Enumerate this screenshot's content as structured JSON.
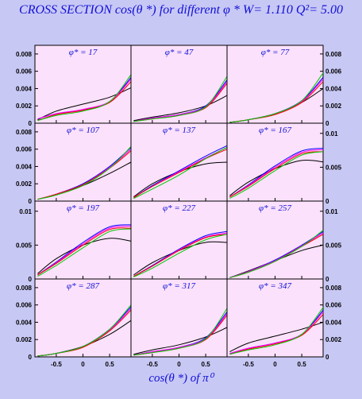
{
  "title": "CROSS SECTION  cos(θ *)   for different  φ *   W= 1.110  Q²= 5.00",
  "xlabel": "cos(θ *)  of  π⁰",
  "colors": {
    "background": "#c8c8f5",
    "panel": "#fbe1fb",
    "text": "#1010d8",
    "curves": [
      "#000000",
      "#0000ff",
      "#ff00ff",
      "#ff0000",
      "#00c800"
    ]
  },
  "chart_data": [
    {
      "type": "line",
      "row": 0,
      "col": 0,
      "label": "φ* = 17",
      "x": [
        -0.85,
        -0.5,
        0,
        0.5,
        0.9
      ],
      "ylim": [
        0,
        0.009
      ],
      "yticks": [
        {
          "v": 0,
          "t": "0"
        },
        {
          "v": 0.002,
          "t": "0.002"
        },
        {
          "v": 0.004,
          "t": "0.004"
        },
        {
          "v": 0.006,
          "t": "0.006"
        },
        {
          "v": 0.008,
          "t": "0.008"
        }
      ],
      "ytick_side": "left",
      "series": [
        {
          "color": "#000000",
          "values": [
            0.0004,
            0.0014,
            0.0022,
            0.003,
            0.0041
          ]
        },
        {
          "color": "#0000ff",
          "values": [
            0.0005,
            0.0011,
            0.0015,
            0.0025,
            0.0053
          ]
        },
        {
          "color": "#ff00ff",
          "values": [
            0.0005,
            0.0011,
            0.0016,
            0.0025,
            0.0051
          ]
        },
        {
          "color": "#ff0000",
          "values": [
            0.0003,
            0.001,
            0.0015,
            0.0024,
            0.0048
          ]
        },
        {
          "color": "#00c800",
          "values": [
            0.0003,
            0.0009,
            0.0014,
            0.0025,
            0.0056
          ]
        }
      ]
    },
    {
      "type": "line",
      "row": 0,
      "col": 1,
      "label": "φ* = 47",
      "x": [
        -0.85,
        -0.5,
        0,
        0.5,
        0.9
      ],
      "ylim": [
        0,
        0.009
      ],
      "yticks": [],
      "ytick_side": "none",
      "series": [
        {
          "color": "#000000",
          "values": [
            0.0003,
            0.0007,
            0.0012,
            0.002,
            0.0032
          ]
        },
        {
          "color": "#0000ff",
          "values": [
            0.0002,
            0.0006,
            0.001,
            0.002,
            0.005
          ]
        },
        {
          "color": "#ff00ff",
          "values": [
            0.0002,
            0.0006,
            0.001,
            0.0019,
            0.0048
          ]
        },
        {
          "color": "#ff0000",
          "values": [
            0.0002,
            0.0005,
            0.0009,
            0.0018,
            0.0046
          ]
        },
        {
          "color": "#00c800",
          "values": [
            0.0002,
            0.0005,
            0.0009,
            0.0019,
            0.0054
          ]
        }
      ]
    },
    {
      "type": "line",
      "row": 0,
      "col": 2,
      "label": "φ* = 77",
      "x": [
        -0.85,
        -0.5,
        0,
        0.5,
        0.9
      ],
      "ylim": [
        0,
        0.009
      ],
      "yticks": [
        {
          "v": 0,
          "t": "0"
        },
        {
          "v": 0.002,
          "t": "0.002"
        },
        {
          "v": 0.004,
          "t": "0.004"
        },
        {
          "v": 0.006,
          "t": "0.006"
        },
        {
          "v": 0.008,
          "t": "0.008"
        }
      ],
      "ytick_side": "right",
      "series": [
        {
          "color": "#000000",
          "values": [
            0.0001,
            0.0004,
            0.0011,
            0.0024,
            0.004
          ]
        },
        {
          "color": "#0000ff",
          "values": [
            0.0001,
            0.0004,
            0.0011,
            0.0026,
            0.0053
          ]
        },
        {
          "color": "#ff00ff",
          "values": [
            0.0001,
            0.0004,
            0.0011,
            0.0025,
            0.0051
          ]
        },
        {
          "color": "#ff0000",
          "values": [
            0.0001,
            0.0004,
            0.001,
            0.0024,
            0.0048
          ]
        },
        {
          "color": "#00c800",
          "values": [
            0.0001,
            0.0004,
            0.0011,
            0.0026,
            0.0058
          ]
        }
      ]
    },
    {
      "type": "line",
      "row": 1,
      "col": 0,
      "label": "φ* = 107",
      "x": [
        -0.85,
        -0.5,
        0,
        0.5,
        0.9
      ],
      "ylim": [
        0,
        0.009
      ],
      "yticks": [
        {
          "v": 0,
          "t": "0"
        },
        {
          "v": 0.002,
          "t": "0.002"
        },
        {
          "v": 0.004,
          "t": "0.004"
        },
        {
          "v": 0.006,
          "t": "0.006"
        },
        {
          "v": 0.008,
          "t": "0.008"
        }
      ],
      "ytick_side": "left",
      "series": [
        {
          "color": "#000000",
          "values": [
            0.0002,
            0.0008,
            0.0018,
            0.0032,
            0.0045
          ]
        },
        {
          "color": "#0000ff",
          "values": [
            0.0002,
            0.0008,
            0.002,
            0.004,
            0.0062
          ]
        },
        {
          "color": "#ff00ff",
          "values": [
            0.0002,
            0.0008,
            0.0019,
            0.0039,
            0.006
          ]
        },
        {
          "color": "#ff0000",
          "values": [
            0.0002,
            0.0008,
            0.0019,
            0.0038,
            0.0058
          ]
        },
        {
          "color": "#00c800",
          "values": [
            0.0002,
            0.0007,
            0.0018,
            0.0038,
            0.0063
          ]
        }
      ]
    },
    {
      "type": "line",
      "row": 1,
      "col": 1,
      "label": "φ* = 137",
      "x": [
        -0.85,
        -0.5,
        0,
        0.5,
        0.9
      ],
      "ylim": [
        0,
        0.009
      ],
      "yticks": [],
      "ytick_side": "none",
      "series": [
        {
          "color": "#000000",
          "values": [
            0.0005,
            0.002,
            0.0034,
            0.0043,
            0.0045
          ]
        },
        {
          "color": "#0000ff",
          "values": [
            0.0004,
            0.0018,
            0.0035,
            0.0052,
            0.0064
          ]
        },
        {
          "color": "#ff00ff",
          "values": [
            0.0004,
            0.0017,
            0.0034,
            0.005,
            0.0062
          ]
        },
        {
          "color": "#ff0000",
          "values": [
            0.0004,
            0.0017,
            0.0033,
            0.0049,
            0.006
          ]
        },
        {
          "color": "#00c800",
          "values": [
            0.0003,
            0.0014,
            0.003,
            0.0049,
            0.0062
          ]
        }
      ]
    },
    {
      "type": "line",
      "row": 1,
      "col": 2,
      "label": "φ* = 167",
      "x": [
        -0.85,
        -0.5,
        0,
        0.5,
        0.9
      ],
      "ylim": [
        0,
        0.0115
      ],
      "yticks": [
        {
          "v": 0,
          "t": "0"
        },
        {
          "v": 0.005,
          "t": "0.005"
        },
        {
          "v": 0.01,
          "t": "0.01"
        }
      ],
      "ytick_side": "right",
      "series": [
        {
          "color": "#000000",
          "values": [
            0.0008,
            0.0028,
            0.0048,
            0.006,
            0.0058
          ]
        },
        {
          "color": "#0000ff",
          "values": [
            0.0006,
            0.0024,
            0.0052,
            0.0074,
            0.0078
          ]
        },
        {
          "color": "#ff00ff",
          "values": [
            0.0006,
            0.0023,
            0.005,
            0.0072,
            0.0076
          ]
        },
        {
          "color": "#ff0000",
          "values": [
            0.0006,
            0.0022,
            0.0048,
            0.007,
            0.0073
          ]
        },
        {
          "color": "#00c800",
          "values": [
            0.0004,
            0.0019,
            0.0045,
            0.0068,
            0.0073
          ]
        }
      ]
    },
    {
      "type": "line",
      "row": 2,
      "col": 0,
      "label": "φ* = 197",
      "x": [
        -0.85,
        -0.5,
        0,
        0.5,
        0.9
      ],
      "ylim": [
        0,
        0.0115
      ],
      "yticks": [
        {
          "v": 0,
          "t": "0"
        },
        {
          "v": 0.005,
          "t": "0.005"
        },
        {
          "v": 0.01,
          "t": "0.01"
        }
      ],
      "ytick_side": "left",
      "series": [
        {
          "color": "#000000",
          "values": [
            0.0008,
            0.003,
            0.005,
            0.006,
            0.0056
          ]
        },
        {
          "color": "#0000ff",
          "values": [
            0.0006,
            0.0025,
            0.0054,
            0.0077,
            0.008
          ]
        },
        {
          "color": "#ff00ff",
          "values": [
            0.0006,
            0.0024,
            0.0052,
            0.0075,
            0.0078
          ]
        },
        {
          "color": "#ff0000",
          "values": [
            0.0006,
            0.0023,
            0.005,
            0.0073,
            0.0075
          ]
        },
        {
          "color": "#00c800",
          "values": [
            0.0004,
            0.002,
            0.0046,
            0.007,
            0.0074
          ]
        }
      ]
    },
    {
      "type": "line",
      "row": 2,
      "col": 1,
      "label": "φ* = 227",
      "x": [
        -0.85,
        -0.5,
        0,
        0.5,
        0.9
      ],
      "ylim": [
        0,
        0.0115
      ],
      "yticks": [],
      "ytick_side": "none",
      "series": [
        {
          "color": "#000000",
          "values": [
            0.0006,
            0.0024,
            0.0042,
            0.0054,
            0.0054
          ]
        },
        {
          "color": "#0000ff",
          "values": [
            0.0004,
            0.002,
            0.0044,
            0.0064,
            0.007
          ]
        },
        {
          "color": "#ff00ff",
          "values": [
            0.0004,
            0.0019,
            0.0043,
            0.0062,
            0.0068
          ]
        },
        {
          "color": "#ff0000",
          "values": [
            0.0004,
            0.0019,
            0.0042,
            0.0061,
            0.0066
          ]
        },
        {
          "color": "#00c800",
          "values": [
            0.0003,
            0.0016,
            0.0038,
            0.0058,
            0.0066
          ]
        }
      ]
    },
    {
      "type": "line",
      "row": 2,
      "col": 2,
      "label": "φ* = 257",
      "x": [
        -0.85,
        -0.5,
        0,
        0.5,
        0.9
      ],
      "ylim": [
        0,
        0.0115
      ],
      "yticks": [
        {
          "v": 0,
          "t": "0"
        },
        {
          "v": 0.005,
          "t": "0.005"
        },
        {
          "v": 0.01,
          "t": "0.01"
        }
      ],
      "ytick_side": "right",
      "series": [
        {
          "color": "#000000",
          "values": [
            0.0002,
            0.0012,
            0.0027,
            0.0042,
            0.005
          ]
        },
        {
          "color": "#0000ff",
          "values": [
            0.0002,
            0.0011,
            0.0028,
            0.005,
            0.007
          ]
        },
        {
          "color": "#ff00ff",
          "values": [
            0.0002,
            0.0011,
            0.0027,
            0.0049,
            0.0068
          ]
        },
        {
          "color": "#ff0000",
          "values": [
            0.0002,
            0.001,
            0.0026,
            0.0048,
            0.0066
          ]
        },
        {
          "color": "#00c800",
          "values": [
            0.0002,
            0.001,
            0.0026,
            0.0048,
            0.0072
          ]
        }
      ]
    },
    {
      "type": "line",
      "row": 3,
      "col": 0,
      "label": "φ* = 287",
      "x": [
        -0.85,
        -0.5,
        0,
        0.5,
        0.9
      ],
      "ylim": [
        0,
        0.009
      ],
      "yticks": [
        {
          "v": 0,
          "t": "0"
        },
        {
          "v": 0.002,
          "t": "0.002"
        },
        {
          "v": 0.004,
          "t": "0.004"
        },
        {
          "v": 0.006,
          "t": "0.006"
        },
        {
          "v": 0.008,
          "t": "0.008"
        }
      ],
      "ytick_side": "left",
      "series": [
        {
          "color": "#000000",
          "values": [
            0.0001,
            0.0004,
            0.0012,
            0.0026,
            0.0042
          ]
        },
        {
          "color": "#0000ff",
          "values": [
            0.0001,
            0.0004,
            0.0012,
            0.0032,
            0.0058
          ]
        },
        {
          "color": "#ff00ff",
          "values": [
            0.0001,
            0.0004,
            0.0012,
            0.0031,
            0.0056
          ]
        },
        {
          "color": "#ff0000",
          "values": [
            0.0001,
            0.0004,
            0.0011,
            0.003,
            0.0054
          ]
        },
        {
          "color": "#00c800",
          "values": [
            0.0001,
            0.0004,
            0.0012,
            0.0032,
            0.006
          ]
        }
      ]
    },
    {
      "type": "line",
      "row": 3,
      "col": 1,
      "label": "φ* = 317",
      "x": [
        -0.85,
        -0.5,
        0,
        0.5,
        0.9
      ],
      "ylim": [
        0,
        0.009
      ],
      "yticks": [],
      "ytick_side": "none",
      "series": [
        {
          "color": "#000000",
          "values": [
            0.0003,
            0.0008,
            0.0014,
            0.0023,
            0.0034
          ]
        },
        {
          "color": "#0000ff",
          "values": [
            0.0002,
            0.0006,
            0.0011,
            0.0022,
            0.0052
          ]
        },
        {
          "color": "#ff00ff",
          "values": [
            0.0002,
            0.0006,
            0.0011,
            0.0021,
            0.005
          ]
        },
        {
          "color": "#ff0000",
          "values": [
            0.0002,
            0.0005,
            0.001,
            0.002,
            0.0048
          ]
        },
        {
          "color": "#00c800",
          "values": [
            0.0002,
            0.0005,
            0.001,
            0.0021,
            0.0056
          ]
        }
      ]
    },
    {
      "type": "line",
      "row": 3,
      "col": 2,
      "label": "φ* = 347",
      "x": [
        -0.85,
        -0.5,
        0,
        0.5,
        0.9
      ],
      "ylim": [
        0,
        0.009
      ],
      "yticks": [
        {
          "v": 0,
          "t": "0"
        },
        {
          "v": 0.002,
          "t": "0.002"
        },
        {
          "v": 0.004,
          "t": "0.004"
        },
        {
          "v": 0.006,
          "t": "0.006"
        },
        {
          "v": 0.008,
          "t": "0.008"
        }
      ],
      "ytick_side": "right",
      "series": [
        {
          "color": "#000000",
          "values": [
            0.0006,
            0.0016,
            0.0024,
            0.0032,
            0.004
          ]
        },
        {
          "color": "#0000ff",
          "values": [
            0.0004,
            0.001,
            0.0016,
            0.0026,
            0.0054
          ]
        },
        {
          "color": "#ff00ff",
          "values": [
            0.0004,
            0.001,
            0.0016,
            0.0026,
            0.0052
          ]
        },
        {
          "color": "#ff0000",
          "values": [
            0.0003,
            0.0009,
            0.0015,
            0.0025,
            0.0049
          ]
        },
        {
          "color": "#00c800",
          "values": [
            0.0003,
            0.0008,
            0.0014,
            0.0026,
            0.0057
          ]
        }
      ]
    }
  ],
  "xticks": [
    {
      "v": -0.5,
      "t": "-0.5"
    },
    {
      "v": 0,
      "t": "0"
    },
    {
      "v": 0.5,
      "t": "0.5"
    }
  ],
  "xlim": [
    -0.9,
    0.9
  ]
}
